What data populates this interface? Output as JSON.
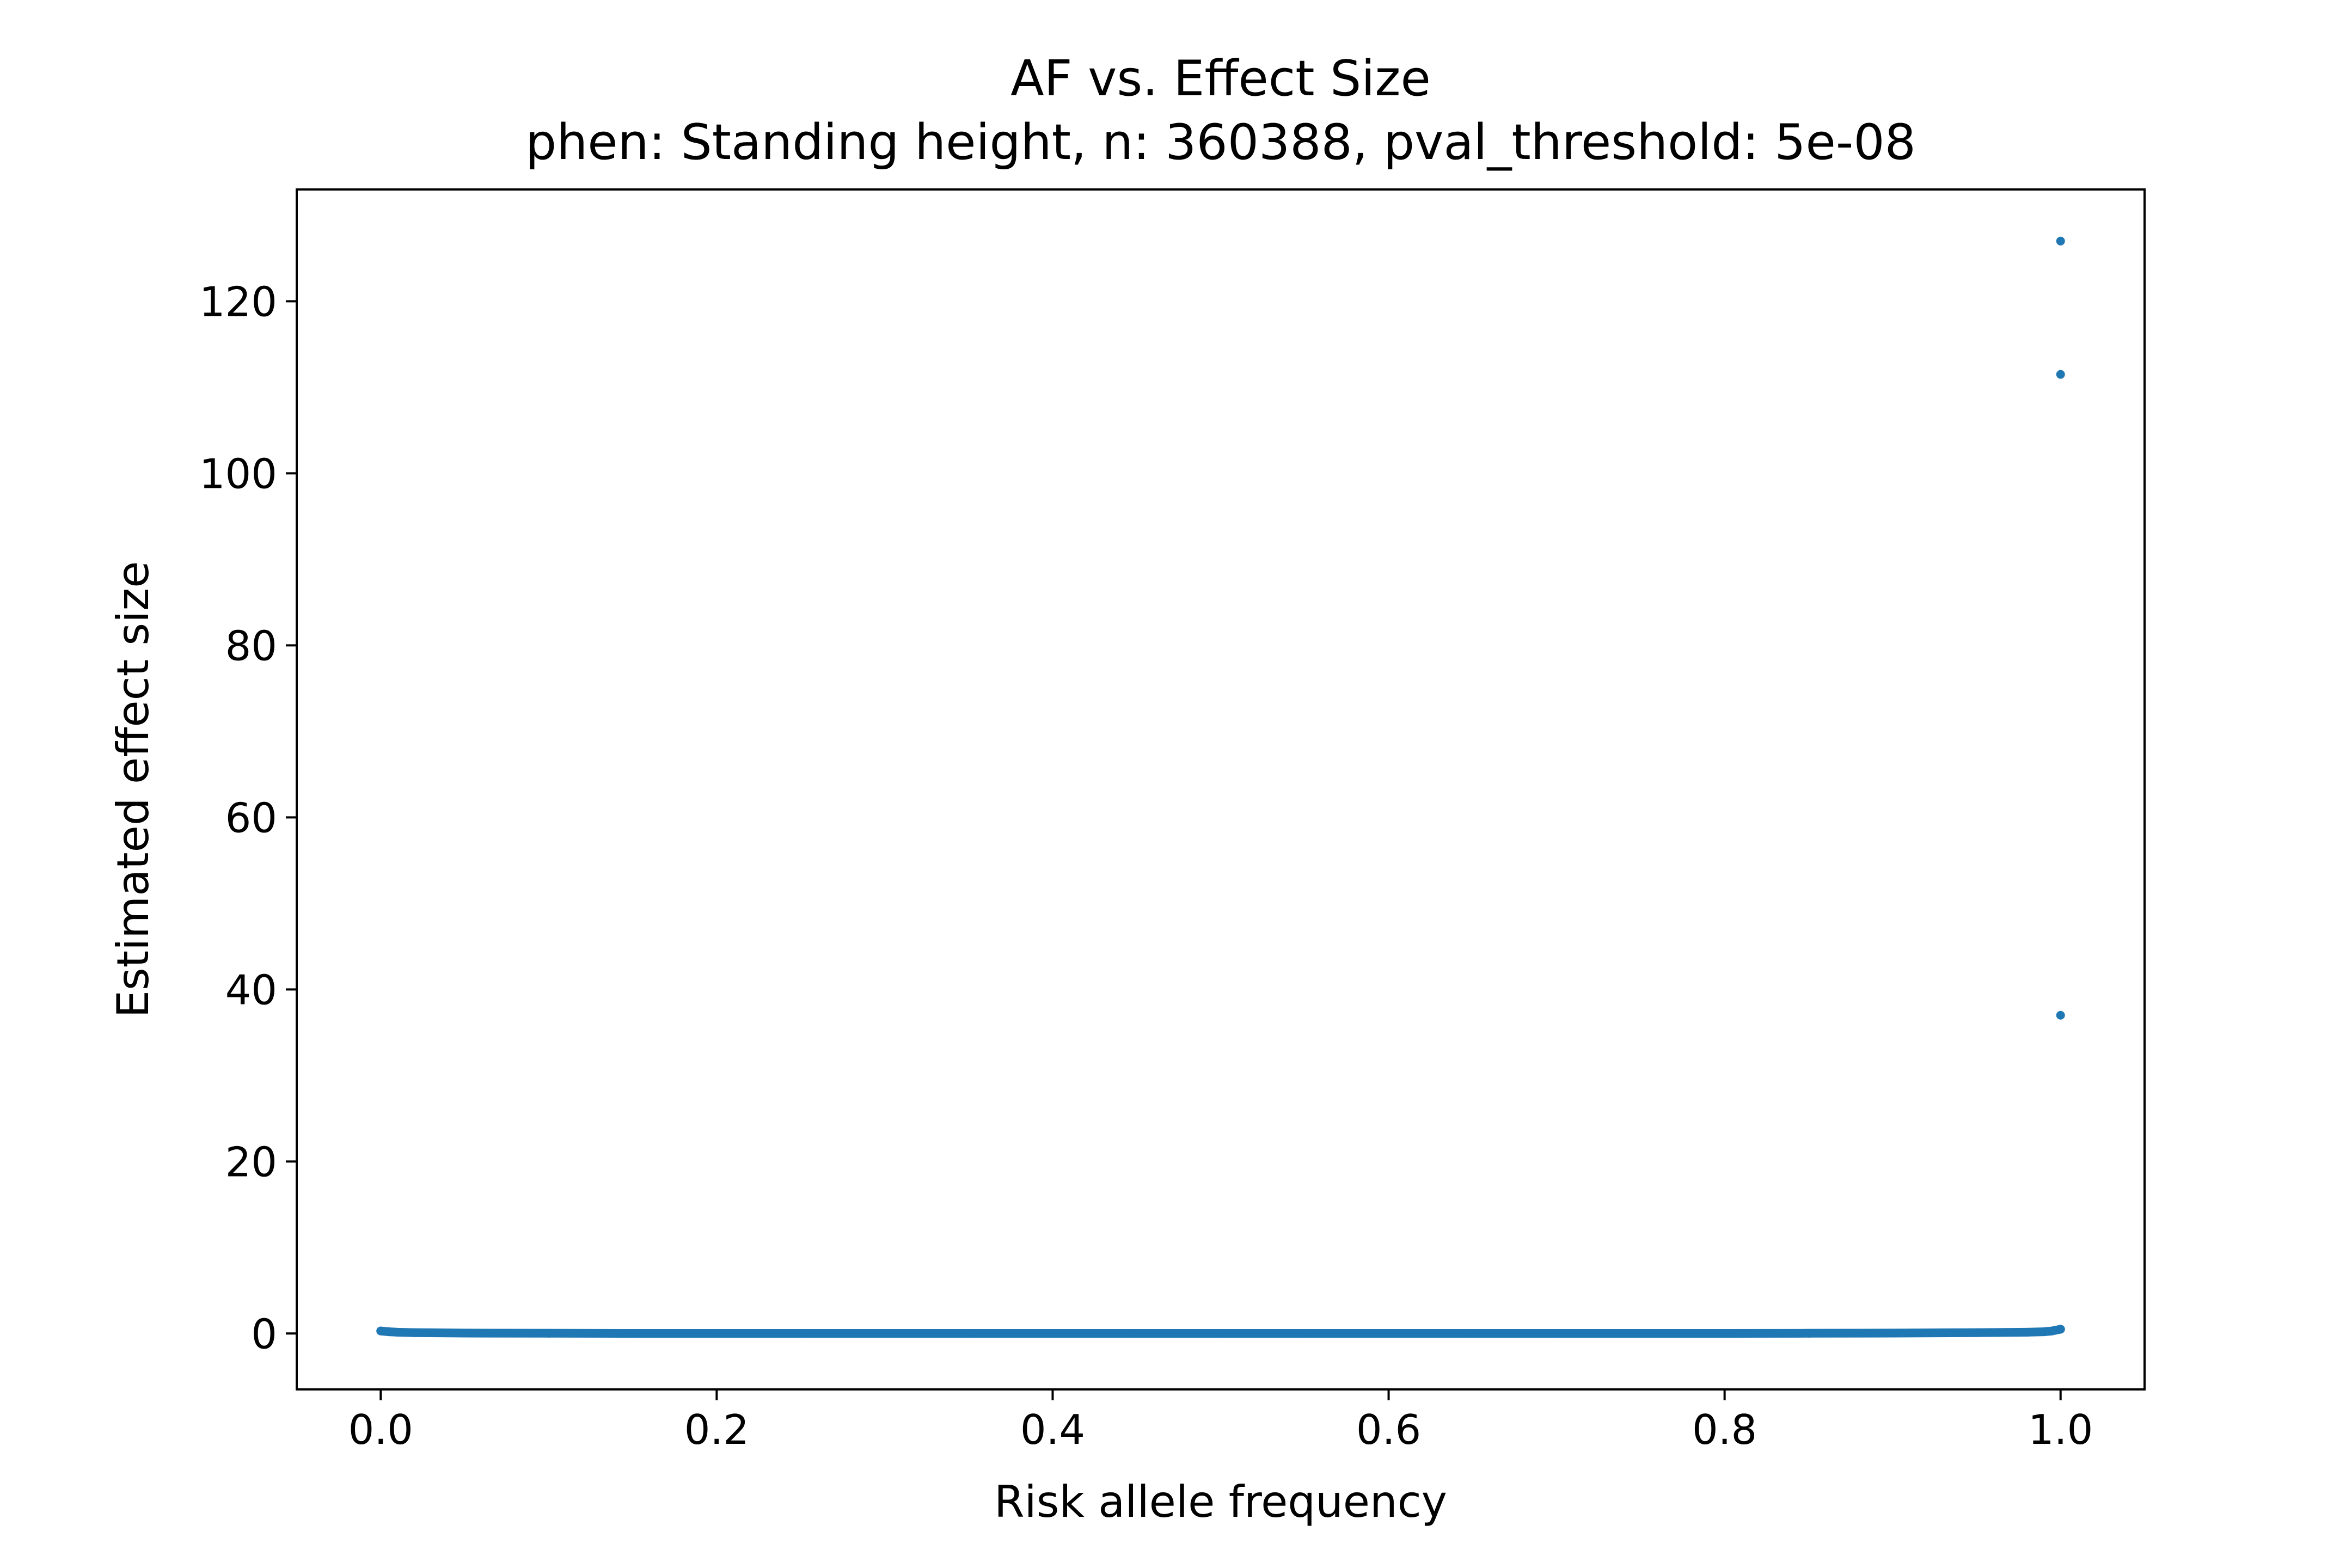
{
  "chart_data": {
    "type": "scatter",
    "title": "AF vs. Effect Size",
    "subtitle": "phen: Standing height, n: 360388, pval_threshold: 5e-08",
    "xlabel": "Risk allele frequency",
    "ylabel": "Estimated effect size",
    "xlim": [
      -0.05,
      1.05
    ],
    "ylim": [
      -6.5,
      133
    ],
    "xticks": [
      0.0,
      0.2,
      0.4,
      0.6,
      0.8,
      1.0
    ],
    "xtick_labels": [
      "0.0",
      "0.2",
      "0.4",
      "0.6",
      "0.8",
      "1.0"
    ],
    "yticks": [
      0,
      20,
      40,
      60,
      80,
      100,
      120
    ],
    "ytick_labels": [
      "0",
      "20",
      "40",
      "60",
      "80",
      "100",
      "120"
    ],
    "grid": false,
    "legend": "none",
    "point_color": "#1f77b4",
    "series": [
      {
        "points": [
          {
            "x": 0.0,
            "y": 0.3
          },
          {
            "x": 0.005,
            "y": 0.2
          },
          {
            "x": 0.01,
            "y": 0.15
          },
          {
            "x": 0.02,
            "y": 0.1
          },
          {
            "x": 0.05,
            "y": 0.05
          },
          {
            "x": 0.1,
            "y": 0.03
          },
          {
            "x": 0.15,
            "y": 0.02
          },
          {
            "x": 0.2,
            "y": 0.02
          },
          {
            "x": 0.25,
            "y": 0.02
          },
          {
            "x": 0.3,
            "y": 0.02
          },
          {
            "x": 0.35,
            "y": 0.02
          },
          {
            "x": 0.4,
            "y": 0.02
          },
          {
            "x": 0.45,
            "y": 0.02
          },
          {
            "x": 0.5,
            "y": 0.02
          },
          {
            "x": 0.55,
            "y": 0.02
          },
          {
            "x": 0.6,
            "y": 0.02
          },
          {
            "x": 0.65,
            "y": 0.02
          },
          {
            "x": 0.7,
            "y": 0.02
          },
          {
            "x": 0.75,
            "y": 0.02
          },
          {
            "x": 0.8,
            "y": 0.02
          },
          {
            "x": 0.85,
            "y": 0.03
          },
          {
            "x": 0.9,
            "y": 0.05
          },
          {
            "x": 0.95,
            "y": 0.1
          },
          {
            "x": 0.98,
            "y": 0.15
          },
          {
            "x": 0.99,
            "y": 0.2
          },
          {
            "x": 0.995,
            "y": 0.3
          },
          {
            "x": 1.0,
            "y": 0.5
          },
          {
            "x": 1.0,
            "y": 37.0
          },
          {
            "x": 1.0,
            "y": 111.5
          },
          {
            "x": 1.0,
            "y": 127.0
          }
        ]
      }
    ]
  }
}
